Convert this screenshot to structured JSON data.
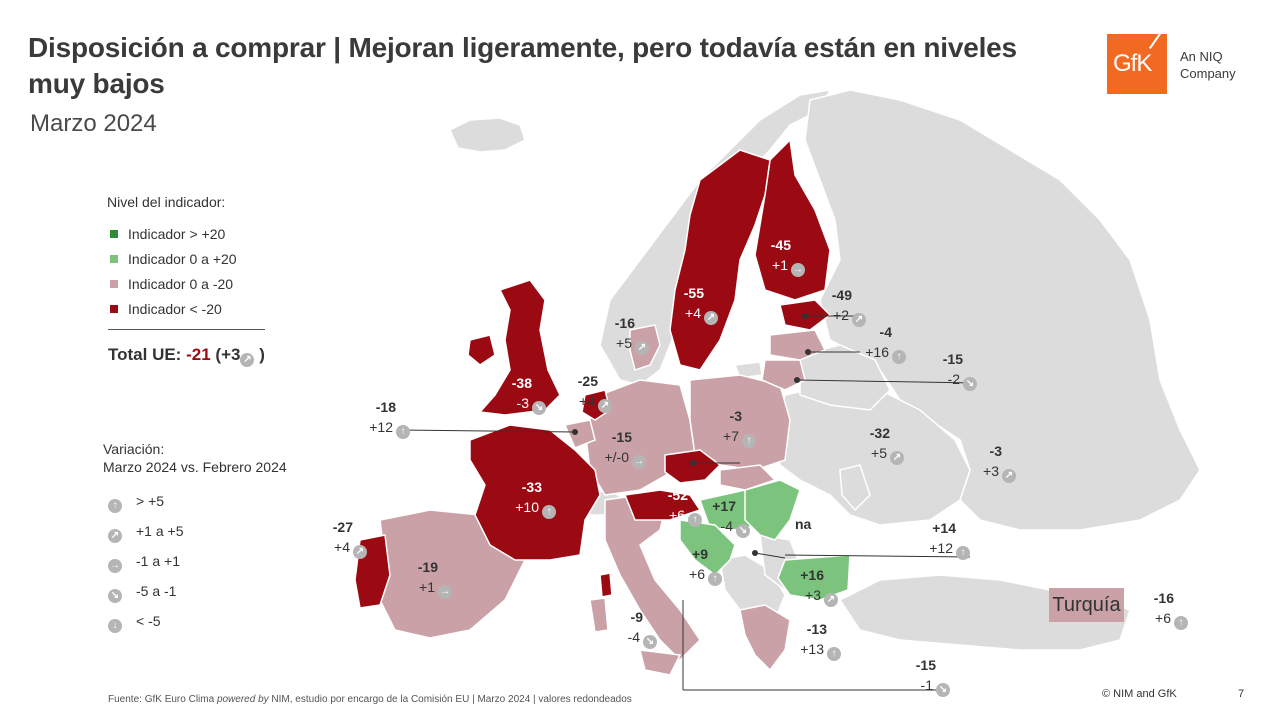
{
  "header": {
    "title": "Disposición a comprar | Mejoran ligeramente, pero todavía están en niveles muy bajos",
    "subtitle": "Marzo 2024"
  },
  "logo": {
    "mark": "GfK",
    "tagline": "An NIQ Company"
  },
  "legend": {
    "title": "Nivel del indicador:",
    "items": [
      {
        "label": "Indicador > +20",
        "color": "#2e8b3a"
      },
      {
        "label": "Indicador 0 a +20",
        "color": "#7cc47e"
      },
      {
        "label": "Indicador 0 a -20",
        "color": "#c9a1a6"
      },
      {
        "label": "Indicador < -20",
        "color": "#9b0a13"
      }
    ]
  },
  "total": {
    "label": "Total UE:",
    "value": "-21",
    "change": "(+3",
    "close": ")"
  },
  "variation_legend": {
    "title_line1": "Variación:",
    "title_line2": "Marzo 2024 vs. Febrero 2024",
    "items": [
      {
        "icon": "arrow-up-icon",
        "label": "> +5"
      },
      {
        "icon": "arrow-up-right-icon",
        "label": "+1 a +5"
      },
      {
        "icon": "arrow-right-icon",
        "label": "-1 a +1"
      },
      {
        "icon": "arrow-down-right-icon",
        "label": "-5 a -1"
      },
      {
        "icon": "arrow-down-icon",
        "label": "< -5"
      }
    ]
  },
  "countries": [
    {
      "name": "finland",
      "value": "-45",
      "change": "+1",
      "trend": "right"
    },
    {
      "name": "sweden",
      "value": "-55",
      "change": "+4",
      "trend": "up-right"
    },
    {
      "name": "estonia",
      "value": "-49",
      "change": "+2",
      "trend": "up-right"
    },
    {
      "name": "latvia",
      "value": "-4",
      "change": "+16",
      "trend": "up"
    },
    {
      "name": "lithuania",
      "value": "-15",
      "change": "-2",
      "trend": "down-right"
    },
    {
      "name": "denmark",
      "value": "-16",
      "change": "+5",
      "trend": "up-right"
    },
    {
      "name": "united-kingdom",
      "value": "-38",
      "change": "-3",
      "trend": "down-right"
    },
    {
      "name": "netherlands",
      "value": "-25",
      "change": "+4",
      "trend": "up-right"
    },
    {
      "name": "belgium",
      "value": "-18",
      "change": "+12",
      "trend": "up"
    },
    {
      "name": "germany",
      "value": "-15",
      "change": "+/-0",
      "trend": "right"
    },
    {
      "name": "poland",
      "value": "-3",
      "change": "+7",
      "trend": "up"
    },
    {
      "name": "belarus",
      "value": "-32",
      "change": "+5",
      "trend": "up-right"
    },
    {
      "name": "russia",
      "value": "-3",
      "change": "+3",
      "trend": "up-right"
    },
    {
      "name": "france",
      "value": "-33",
      "change": "+10",
      "trend": "up"
    },
    {
      "name": "austria",
      "value": "-52",
      "change": "+6",
      "trend": "up"
    },
    {
      "name": "hungary",
      "value": "+17",
      "change": "-4",
      "trend": "down-right"
    },
    {
      "name": "croatia",
      "value": "+9",
      "change": "+6",
      "trend": "up"
    },
    {
      "name": "bulgaria",
      "value": "+16",
      "change": "+3",
      "trend": "up-right"
    },
    {
      "name": "romania",
      "value": "+14",
      "change": "+12",
      "trend": "up"
    },
    {
      "name": "portugal",
      "value": "-27",
      "change": "+4",
      "trend": "up-right"
    },
    {
      "name": "spain",
      "value": "-19",
      "change": "+1",
      "trend": "right"
    },
    {
      "name": "italy",
      "value": "-9",
      "change": "-4",
      "trend": "down-right"
    },
    {
      "name": "greece",
      "value": "-13",
      "change": "+13",
      "trend": "up"
    },
    {
      "name": "cyprus",
      "value": "-15",
      "change": "-1",
      "trend": "down-right"
    },
    {
      "name": "turkey",
      "value": "-16",
      "change": "+6",
      "trend": "up"
    }
  ],
  "na_label": "na",
  "turkey_label": "Turquía",
  "footer": {
    "source_pre": "Fuente: GfK Euro Clima ",
    "source_italic": "powered by",
    "source_post": " NIM,  estudio por encargo de la Comisión EU | Marzo 2024 | valores redondeados",
    "copyright": "© NIM and GfK",
    "page": "7"
  }
}
